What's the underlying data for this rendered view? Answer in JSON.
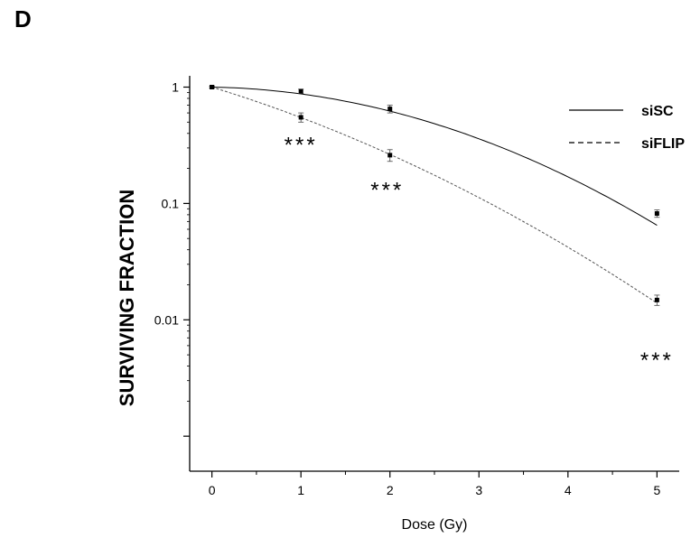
{
  "panel": {
    "letter": "D"
  },
  "chart_data": {
    "type": "scatter",
    "xlabel": "Dose (Gy)",
    "ylabel": "SURVIVING FRACTION",
    "xlim": [
      -0.25,
      5.25
    ],
    "ylim": [
      0.0005,
      1.25
    ],
    "y_scale": "log",
    "grid": false,
    "x_ticks": [
      0,
      1,
      2,
      3,
      4,
      5
    ],
    "y_ticks": [
      {
        "value": 1,
        "label": "1"
      },
      {
        "value": 0.1,
        "label": "0.1"
      },
      {
        "value": 0.01,
        "label": "0.01"
      }
    ],
    "legend_position": "top-right",
    "series": [
      {
        "name": "siSC",
        "line_style": "solid",
        "color": "#000000",
        "x": [
          0,
          1,
          2,
          5
        ],
        "y": [
          1.0,
          0.92,
          0.65,
          0.082
        ],
        "error": [
          0.02,
          0.04,
          0.05,
          0.006
        ],
        "fit": {
          "alpha": 0.032,
          "beta": 0.103
        }
      },
      {
        "name": "siFLIP",
        "line_style": "dashed",
        "color": "#555555",
        "x": [
          0,
          1,
          2,
          5
        ],
        "y": [
          1.0,
          0.55,
          0.26,
          0.0148
        ],
        "error": [
          0.02,
          0.05,
          0.03,
          0.0015
        ],
        "fit": {
          "alpha": 0.54,
          "beta": 0.063
        }
      }
    ],
    "annotations": [
      {
        "text": "***",
        "x": 1.0,
        "y": 0.32
      },
      {
        "text": "***",
        "x": 1.97,
        "y": 0.13
      },
      {
        "text": "***",
        "x": 5.0,
        "y": 0.0045
      }
    ]
  }
}
